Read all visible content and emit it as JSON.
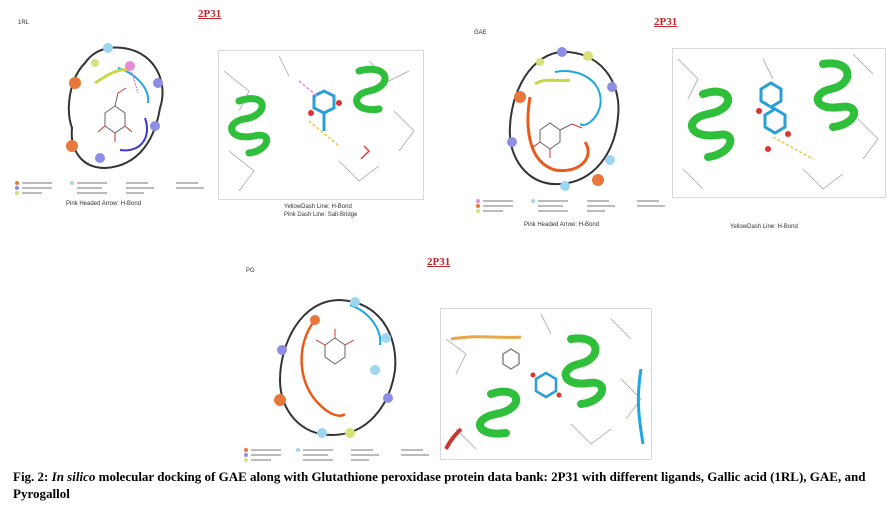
{
  "figure": {
    "panels": [
      {
        "pdb": "2P31",
        "ligand": "1RL",
        "legend_caption": "Pink Headed Arrow: H-Bond",
        "view3d_captions": [
          "YellowDash Line: H-Bond",
          "Pink Dash Line: Salt-Bridge"
        ]
      },
      {
        "pdb": "2P31",
        "ligand": "GAE",
        "legend_caption": "Pink Headed Arrow: H-Bond",
        "view3d_captions": [
          "YellowDash Line: H-Bond"
        ]
      },
      {
        "pdb": "2P31",
        "ligand": "PG",
        "legend_caption": "",
        "view3d_captions": []
      }
    ],
    "caption": {
      "label": "Fig. 2: ",
      "italic": "In silico",
      "text": " molecular docking of GAE along with Glutathione peroxidase protein data bank: 2P31 with different ligands, Gallic acid (1RL), GAE, and Pyrogallol"
    }
  }
}
